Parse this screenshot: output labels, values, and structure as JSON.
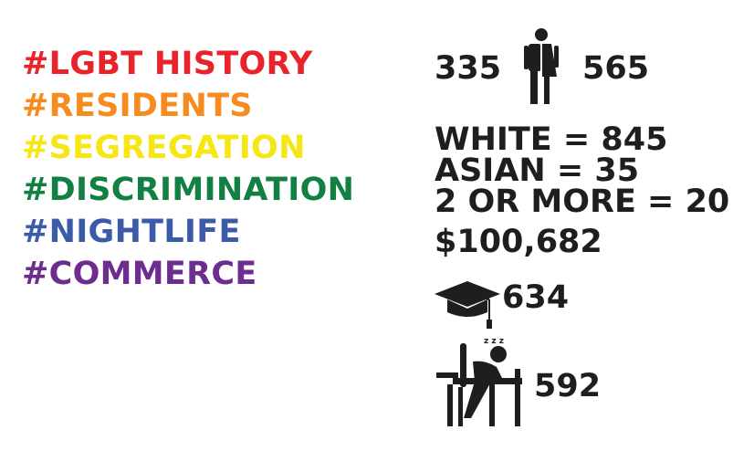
{
  "hashtags": [
    {
      "label": "#LGBT HISTORY",
      "color": "#e8232a"
    },
    {
      "label": "#RESIDENTS",
      "color": "#f68b1f"
    },
    {
      "label": "#SEGREGATION",
      "color": "#f5e614"
    },
    {
      "label": "#DISCRIMINATION",
      "color": "#138043"
    },
    {
      "label": "#NIGHTLIFE",
      "color": "#3b5ba9"
    },
    {
      "label": "#COMMERCE",
      "color": "#6d2c8f"
    }
  ],
  "gender": {
    "male": "335",
    "female": "565",
    "icon": "male-female-icon"
  },
  "race": {
    "white": "WHITE = 845",
    "asian": "ASIAN = 35",
    "multi": "2 OR MORE = 20"
  },
  "income": "$100,682",
  "graduates": {
    "value": "634",
    "icon": "graduation-cap-icon"
  },
  "students": {
    "value": "592",
    "icon": "sleeping-student-desk-icon"
  },
  "text_color": "#1e1e1e"
}
